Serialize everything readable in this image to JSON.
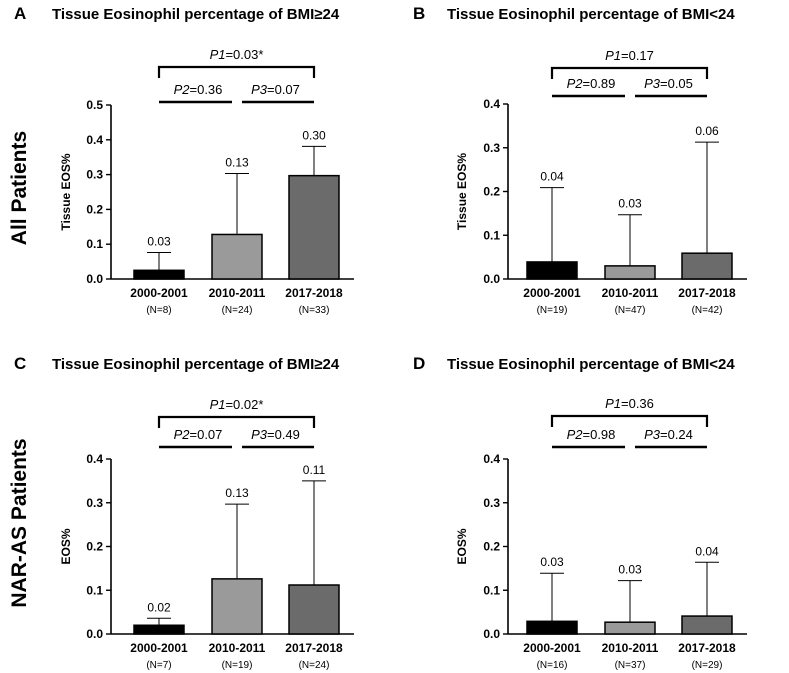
{
  "row_labels": [
    "All Patients",
    "NAR-AS Patients"
  ],
  "colors": {
    "2000-2001": "#000000",
    "2010-2011": "#9a9a9a",
    "2017-2018": "#6b6b6b",
    "axis": "#000000"
  },
  "chart_data": [
    {
      "panel": "A",
      "type": "bar",
      "title": "Tissue Eosinophil percentage of BMI≥24",
      "ylabel": "Tissue EOS%",
      "ylim": [
        0,
        0.5
      ],
      "yticks": [
        "0.0",
        "0.1",
        "0.2",
        "0.3",
        "0.4",
        "0.5"
      ],
      "categories": [
        "2000-2001",
        "2010-2011",
        "2017-2018"
      ],
      "n_labels": [
        "(N=8)",
        "(N=24)",
        "(N=33)"
      ],
      "values": [
        0.025,
        0.128,
        0.297
      ],
      "error_upper": [
        0.076,
        0.303,
        0.381
      ],
      "value_labels": [
        "0.03",
        "0.13",
        "0.30"
      ],
      "comparisons": [
        {
          "name": "P1",
          "value": "=0.03*",
          "from": 0,
          "to": 2
        },
        {
          "name": "P2",
          "value": "=0.36",
          "from": 0,
          "to": 1
        },
        {
          "name": "P3",
          "value": "=0.07",
          "from": 1,
          "to": 2
        }
      ]
    },
    {
      "panel": "B",
      "type": "bar",
      "title": "Tissue Eosinophil percentage of BMI<24",
      "ylabel": "Tissue EOS%",
      "ylim": [
        0,
        0.4
      ],
      "yticks": [
        "0.0",
        "0.1",
        "0.2",
        "0.3",
        "0.4"
      ],
      "categories": [
        "2000-2001",
        "2010-2011",
        "2017-2018"
      ],
      "n_labels": [
        "(N=19)",
        "(N=47)",
        "(N=42)"
      ],
      "values": [
        0.039,
        0.03,
        0.059
      ],
      "error_upper": [
        0.209,
        0.147,
        0.313
      ],
      "value_labels": [
        "0.04",
        "0.03",
        "0.06"
      ],
      "comparisons": [
        {
          "name": "P1",
          "value": "=0.17",
          "from": 0,
          "to": 2
        },
        {
          "name": "P2",
          "value": "=0.89",
          "from": 0,
          "to": 1
        },
        {
          "name": "P3",
          "value": "=0.05",
          "from": 1,
          "to": 2
        }
      ]
    },
    {
      "panel": "C",
      "type": "bar",
      "title": "Tissue Eosinophil percentage of BMI≥24",
      "ylabel": "EOS%",
      "ylim": [
        0,
        0.4
      ],
      "yticks": [
        "0.0",
        "0.1",
        "0.2",
        "0.3",
        "0.4"
      ],
      "categories": [
        "2000-2001",
        "2010-2011",
        "2017-2018"
      ],
      "n_labels": [
        "(N=7)",
        "(N=19)",
        "(N=24)"
      ],
      "values": [
        0.02,
        0.126,
        0.112
      ],
      "error_upper": [
        0.036,
        0.297,
        0.35
      ],
      "value_labels": [
        "0.02",
        "0.13",
        "0.11"
      ],
      "comparisons": [
        {
          "name": "P1",
          "value": "=0.02*",
          "from": 0,
          "to": 2
        },
        {
          "name": "P2",
          "value": "=0.07",
          "from": 0,
          "to": 1
        },
        {
          "name": "P3",
          "value": "=0.49",
          "from": 1,
          "to": 2
        }
      ]
    },
    {
      "panel": "D",
      "type": "bar",
      "title": "Tissue Eosinophil percentage of BMI<24",
      "ylabel": "EOS%",
      "ylim": [
        0,
        0.4
      ],
      "yticks": [
        "0.0",
        "0.1",
        "0.2",
        "0.3",
        "0.4"
      ],
      "categories": [
        "2000-2001",
        "2010-2011",
        "2017-2018"
      ],
      "n_labels": [
        "(N=16)",
        "(N=37)",
        "(N=29)"
      ],
      "values": [
        0.029,
        0.027,
        0.041
      ],
      "error_upper": [
        0.139,
        0.122,
        0.164
      ],
      "value_labels": [
        "0.03",
        "0.03",
        "0.04"
      ],
      "comparisons": [
        {
          "name": "P1",
          "value": "=0.36",
          "from": 0,
          "to": 2
        },
        {
          "name": "P2",
          "value": "=0.98",
          "from": 0,
          "to": 1
        },
        {
          "name": "P3",
          "value": "=0.24",
          "from": 1,
          "to": 2
        }
      ]
    }
  ]
}
